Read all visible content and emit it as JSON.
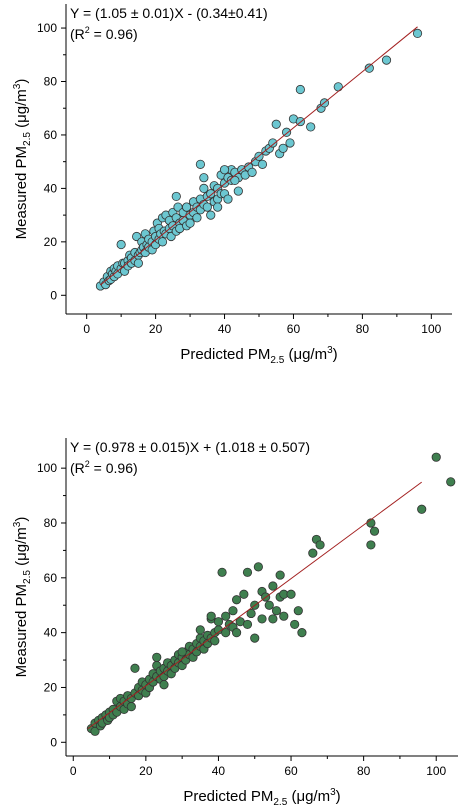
{
  "chart_data": [
    {
      "type": "scatter",
      "annotation_line1": "Y = (1.05 ± 0.01)X - (0.34±0.41)",
      "annotation_line2_prefix": "(R",
      "annotation_line2_sup": "2",
      "annotation_line2_suffix": " = 0.96)",
      "xlabel_main": "Predicted PM",
      "xlabel_sub": "2.5",
      "xlabel_unit_prefix": " (μg/m",
      "xlabel_unit_sup": "3",
      "xlabel_unit_suffix": ")",
      "ylabel_main": "Measured PM",
      "ylabel_sub": "2.5",
      "ylabel_unit_prefix": " (μg/m",
      "ylabel_unit_sup": "3",
      "ylabel_unit_suffix": ")",
      "xlim": [
        -6,
        106
      ],
      "ylim": [
        -7,
        109
      ],
      "xticks": [
        0,
        20,
        40,
        60,
        80,
        100
      ],
      "yticks": [
        0,
        20,
        40,
        60,
        80,
        100
      ],
      "marker_color": "#6cc7d1",
      "line_color": "#a32020",
      "fit_line": {
        "x": [
          4,
          96
        ],
        "y": [
          3.86,
          100.46
        ]
      },
      "points": [
        [
          4,
          3.5
        ],
        [
          5,
          5
        ],
        [
          5.5,
          4
        ],
        [
          6,
          7
        ],
        [
          6.5,
          5.5
        ],
        [
          7,
          6
        ],
        [
          7,
          9
        ],
        [
          7.5,
          8
        ],
        [
          8,
          7
        ],
        [
          8,
          10
        ],
        [
          8.5,
          9
        ],
        [
          9,
          11
        ],
        [
          9,
          8
        ],
        [
          10,
          10
        ],
        [
          10,
          19
        ],
        [
          10.5,
          12
        ],
        [
          11,
          12
        ],
        [
          11,
          9
        ],
        [
          12,
          13
        ],
        [
          12,
          11
        ],
        [
          12.5,
          15
        ],
        [
          13,
          14
        ],
        [
          13,
          12
        ],
        [
          14,
          16
        ],
        [
          14,
          13
        ],
        [
          14.5,
          22
        ],
        [
          15,
          15
        ],
        [
          15,
          12
        ],
        [
          15.5,
          16
        ],
        [
          16,
          17
        ],
        [
          16,
          20
        ],
        [
          16.5,
          18
        ],
        [
          17,
          16
        ],
        [
          17,
          23
        ],
        [
          17.5,
          19
        ],
        [
          18,
          18
        ],
        [
          18,
          21
        ],
        [
          19,
          20
        ],
        [
          19,
          17
        ],
        [
          19.5,
          24
        ],
        [
          20,
          22
        ],
        [
          20,
          19
        ],
        [
          20.5,
          27
        ],
        [
          21,
          21
        ],
        [
          21,
          25
        ],
        [
          21.5,
          23
        ],
        [
          22,
          20
        ],
        [
          22,
          29
        ],
        [
          22.5,
          24
        ],
        [
          23,
          23
        ],
        [
          23,
          30
        ],
        [
          24,
          25
        ],
        [
          24,
          28
        ],
        [
          24.5,
          22
        ],
        [
          25,
          26
        ],
        [
          25,
          31
        ],
        [
          26,
          24
        ],
        [
          26,
          29
        ],
        [
          26.5,
          33
        ],
        [
          27,
          27
        ],
        [
          27,
          25
        ],
        [
          28,
          28
        ],
        [
          28,
          31
        ],
        [
          29,
          26
        ],
        [
          29,
          33
        ],
        [
          30,
          30
        ],
        [
          30,
          27
        ],
        [
          31,
          31
        ],
        [
          31,
          35
        ],
        [
          32,
          29
        ],
        [
          32,
          33
        ],
        [
          33,
          32
        ],
        [
          33,
          36
        ],
        [
          34,
          34
        ],
        [
          34,
          40
        ],
        [
          35,
          33
        ],
        [
          35,
          37
        ],
        [
          36,
          38
        ],
        [
          36,
          30
        ],
        [
          37,
          35
        ],
        [
          37,
          41
        ],
        [
          38,
          40
        ],
        [
          38,
          36
        ],
        [
          39,
          38
        ],
        [
          39,
          45
        ],
        [
          40,
          42
        ],
        [
          40,
          38
        ],
        [
          41,
          44
        ],
        [
          41,
          36
        ],
        [
          42,
          43
        ],
        [
          42,
          47
        ],
        [
          43,
          46
        ],
        [
          44,
          44
        ],
        [
          44,
          39
        ],
        [
          45,
          47
        ],
        [
          46,
          45
        ],
        [
          47,
          48
        ],
        [
          48,
          46
        ],
        [
          49,
          50
        ],
        [
          50,
          52
        ],
        [
          51,
          49
        ],
        [
          52,
          54
        ],
        [
          53,
          55
        ],
        [
          54,
          57
        ],
        [
          55,
          64
        ],
        [
          56,
          53
        ],
        [
          57,
          55
        ],
        [
          58,
          61
        ],
        [
          59,
          57
        ],
        [
          60,
          66
        ],
        [
          62,
          77
        ],
        [
          62,
          65
        ],
        [
          65,
          63
        ],
        [
          68,
          70
        ],
        [
          69,
          72
        ],
        [
          73,
          78
        ],
        [
          82,
          85
        ],
        [
          87,
          88
        ],
        [
          96,
          98
        ],
        [
          33,
          49
        ],
        [
          34,
          44
        ],
        [
          40,
          47
        ],
        [
          29,
          33
        ],
        [
          43,
          43
        ],
        [
          38,
          33
        ],
        [
          26,
          37
        ]
      ]
    },
    {
      "type": "scatter",
      "annotation_line1": "Y = (0.978 ± 0.015)X + (1.018 ± 0.507)",
      "annotation_line2_prefix": "(R",
      "annotation_line2_sup": "2",
      "annotation_line2_suffix": " = 0.96)",
      "xlabel_main": "Predicted PM",
      "xlabel_sub": "2.5",
      "xlabel_unit_prefix": " (μg/m",
      "xlabel_unit_sup": "3",
      "xlabel_unit_suffix": ")",
      "ylabel_main": "Measured PM",
      "ylabel_sub": "2.5",
      "ylabel_unit_prefix": " (μg/m",
      "ylabel_unit_sup": "3",
      "ylabel_unit_suffix": ")",
      "xlim": [
        -2,
        106
      ],
      "ylim": [
        -5,
        111
      ],
      "xticks": [
        0,
        20,
        40,
        60,
        80,
        100
      ],
      "yticks": [
        0,
        20,
        40,
        60,
        80,
        100
      ],
      "marker_color": "#3f7f4f",
      "line_color": "#a32020",
      "fit_line": {
        "x": [
          4,
          96
        ],
        "y": [
          4.93,
          94.91
        ]
      },
      "points": [
        [
          5,
          5
        ],
        [
          6,
          4
        ],
        [
          6,
          7
        ],
        [
          7,
          8
        ],
        [
          7.5,
          6
        ],
        [
          8,
          9
        ],
        [
          8,
          7
        ],
        [
          9,
          10
        ],
        [
          9.5,
          8
        ],
        [
          10,
          11
        ],
        [
          10,
          9
        ],
        [
          11,
          12
        ],
        [
          11,
          10
        ],
        [
          12,
          15
        ],
        [
          12,
          11
        ],
        [
          13,
          13
        ],
        [
          13,
          16
        ],
        [
          14,
          12
        ],
        [
          14,
          15
        ],
        [
          15,
          14
        ],
        [
          15,
          17
        ],
        [
          16,
          16
        ],
        [
          16,
          13
        ],
        [
          17,
          18
        ],
        [
          17,
          27
        ],
        [
          18,
          17
        ],
        [
          18,
          20
        ],
        [
          19,
          19
        ],
        [
          19,
          22
        ],
        [
          20,
          21
        ],
        [
          20,
          18
        ],
        [
          21,
          23
        ],
        [
          21,
          20
        ],
        [
          22,
          22
        ],
        [
          22,
          25
        ],
        [
          23,
          24
        ],
        [
          23,
          28
        ],
        [
          24,
          23
        ],
        [
          24,
          26
        ],
        [
          25,
          27
        ],
        [
          25,
          24
        ],
        [
          26,
          26
        ],
        [
          26,
          29
        ],
        [
          27,
          28
        ],
        [
          27,
          25
        ],
        [
          28,
          30
        ],
        [
          28,
          27
        ],
        [
          29,
          29
        ],
        [
          29,
          32
        ],
        [
          30,
          31
        ],
        [
          30,
          28
        ],
        [
          31,
          30
        ],
        [
          31,
          33
        ],
        [
          32,
          32
        ],
        [
          32,
          35
        ],
        [
          33,
          34
        ],
        [
          33,
          31
        ],
        [
          34,
          33
        ],
        [
          34,
          36
        ],
        [
          35,
          35
        ],
        [
          35,
          38
        ],
        [
          36,
          37
        ],
        [
          36,
          34
        ],
        [
          37,
          39
        ],
        [
          37,
          36
        ],
        [
          38,
          38
        ],
        [
          38,
          45
        ],
        [
          39,
          40
        ],
        [
          39,
          37
        ],
        [
          40,
          41
        ],
        [
          40,
          44
        ],
        [
          41,
          62
        ],
        [
          42,
          40
        ],
        [
          42,
          46
        ],
        [
          43,
          43
        ],
        [
          44,
          48
        ],
        [
          44,
          42
        ],
        [
          45,
          52
        ],
        [
          45,
          40
        ],
        [
          46,
          44
        ],
        [
          47,
          54
        ],
        [
          48,
          62
        ],
        [
          48,
          43
        ],
        [
          49,
          47
        ],
        [
          50,
          50
        ],
        [
          50,
          38
        ],
        [
          51,
          64
        ],
        [
          52,
          45
        ],
        [
          52,
          55
        ],
        [
          53,
          53
        ],
        [
          54,
          50
        ],
        [
          55,
          57
        ],
        [
          55,
          45
        ],
        [
          56,
          48
        ],
        [
          57,
          53
        ],
        [
          57,
          61
        ],
        [
          58,
          54
        ],
        [
          58,
          46
        ],
        [
          60,
          54
        ],
        [
          61,
          43
        ],
        [
          62,
          48
        ],
        [
          63,
          40
        ],
        [
          66,
          69
        ],
        [
          67,
          74
        ],
        [
          68,
          72
        ],
        [
          82,
          80
        ],
        [
          82,
          72
        ],
        [
          83,
          77
        ],
        [
          96,
          85
        ],
        [
          100,
          104
        ],
        [
          104,
          95
        ],
        [
          23,
          31
        ],
        [
          30,
          33
        ],
        [
          25,
          21
        ],
        [
          35,
          41
        ],
        [
          38,
          46
        ]
      ]
    }
  ]
}
